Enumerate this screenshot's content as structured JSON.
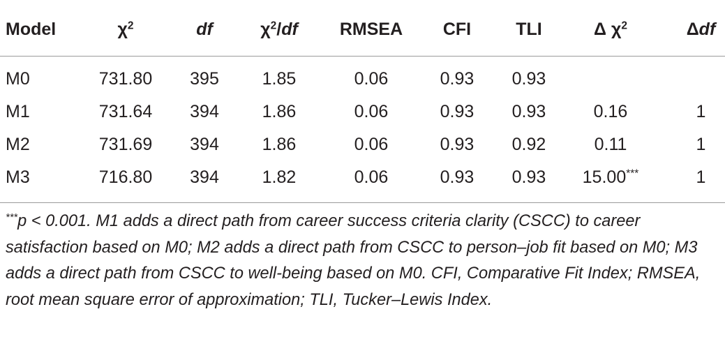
{
  "table": {
    "header": [
      [
        {
          "text": "Model"
        }
      ],
      [
        {
          "text": "χ"
        },
        {
          "text": "2",
          "sup": true
        }
      ],
      [
        {
          "text": "df",
          "italic": true
        }
      ],
      [
        {
          "text": "χ"
        },
        {
          "text": "2",
          "sup": true
        },
        {
          "text": "/"
        },
        {
          "text": "df",
          "italic": true
        }
      ],
      [
        {
          "text": "RMSEA"
        }
      ],
      [
        {
          "text": "CFI"
        }
      ],
      [
        {
          "text": "TLI"
        }
      ],
      [
        {
          "text": "Δ χ"
        },
        {
          "text": "2",
          "sup": true
        }
      ],
      [
        {
          "text": "Δ"
        },
        {
          "text": "df",
          "italic": true
        }
      ]
    ],
    "rows": [
      [
        "M0",
        "731.80",
        "395",
        "1.85",
        "0.06",
        "0.93",
        "0.93",
        null,
        null
      ],
      [
        "M1",
        "731.64",
        "394",
        "1.86",
        "0.06",
        "0.93",
        "0.93",
        "0.16",
        "1"
      ],
      [
        "M2",
        "731.69",
        "394",
        "1.86",
        "0.06",
        "0.93",
        "0.92",
        "0.11",
        "1"
      ],
      [
        "M3",
        "716.80",
        "394",
        "1.82",
        "0.06",
        "0.93",
        "0.93",
        {
          "text": "15.00",
          "sup": "***"
        },
        "1"
      ]
    ]
  },
  "footnote": [
    {
      "text": "***",
      "sup": true
    },
    {
      "text": "p < 0.001. M1 adds a direct path from career success criteria clarity (CSCC) to career satisfaction based on M0; M2 adds a direct path from CSCC to person–job fit based on M0; M3 adds a direct path from CSCC to well-being based on M0. CFI, Comparative Fit Index; RMSEA, root mean square error of approximation; TLI, Tucker–Lewis Index."
    }
  ]
}
